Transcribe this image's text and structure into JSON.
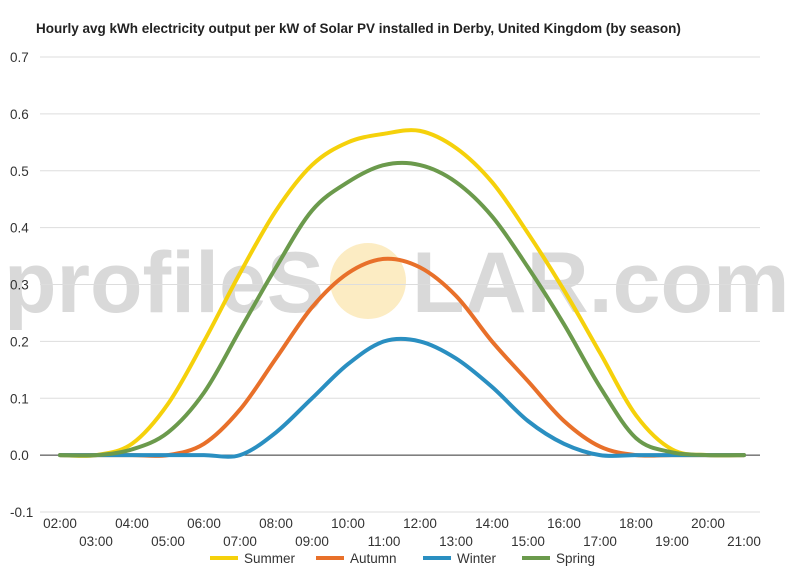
{
  "watermark": {
    "text_left": "profileS",
    "text_right": "LAR.com"
  },
  "chart_data": {
    "type": "line",
    "title": "Hourly avg kWh electricity output per kW of Solar PV installed in Derby, United Kingdom (by season)",
    "xlabel": "",
    "ylabel": "",
    "x": [
      "02:00",
      "03:00",
      "04:00",
      "05:00",
      "06:00",
      "07:00",
      "08:00",
      "09:00",
      "10:00",
      "11:00",
      "12:00",
      "13:00",
      "14:00",
      "15:00",
      "16:00",
      "17:00",
      "18:00",
      "19:00",
      "20:00",
      "21:00"
    ],
    "ylim": [
      -0.1,
      0.7
    ],
    "yticks": [
      "-0.1",
      "0.0",
      "0.1",
      "0.2",
      "0.3",
      "0.4",
      "0.5",
      "0.6",
      "0.7"
    ],
    "grid": true,
    "legend": "bottom",
    "series": [
      {
        "name": "Summer",
        "color": "#f5d10b",
        "values": [
          0.0,
          0.0,
          0.02,
          0.09,
          0.2,
          0.32,
          0.43,
          0.51,
          0.55,
          0.565,
          0.57,
          0.54,
          0.48,
          0.39,
          0.29,
          0.18,
          0.07,
          0.01,
          0.0,
          0.0
        ]
      },
      {
        "name": "Autumn",
        "color": "#e8702a",
        "values": [
          0.0,
          0.0,
          0.0,
          0.0,
          0.02,
          0.08,
          0.17,
          0.26,
          0.32,
          0.345,
          0.33,
          0.28,
          0.2,
          0.13,
          0.06,
          0.015,
          0.0,
          0.0,
          0.0,
          0.0
        ]
      },
      {
        "name": "Winter",
        "color": "#2a8fc1",
        "values": [
          0.0,
          0.0,
          0.0,
          0.0,
          0.0,
          0.0,
          0.04,
          0.1,
          0.16,
          0.2,
          0.2,
          0.17,
          0.12,
          0.06,
          0.02,
          0.0,
          0.0,
          0.0,
          0.0,
          0.0
        ]
      },
      {
        "name": "Spring",
        "color": "#6b9a4c",
        "values": [
          0.0,
          0.0,
          0.01,
          0.04,
          0.11,
          0.22,
          0.33,
          0.43,
          0.48,
          0.51,
          0.51,
          0.48,
          0.42,
          0.33,
          0.23,
          0.12,
          0.03,
          0.005,
          0.0,
          0.0
        ]
      }
    ]
  }
}
